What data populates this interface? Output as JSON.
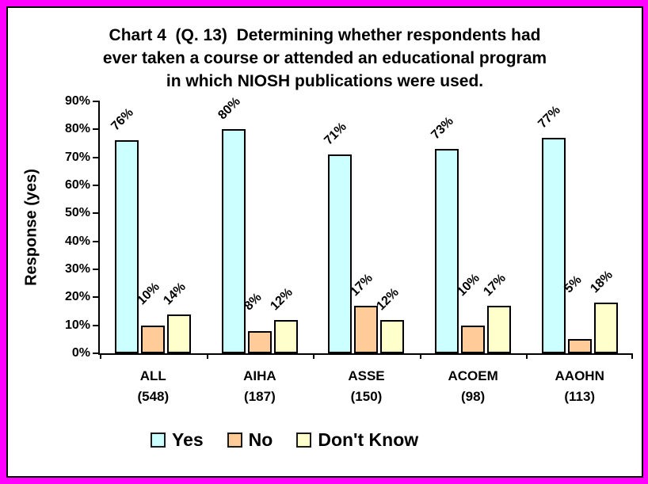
{
  "window": {
    "border_color": "#FF00FF",
    "background_color": "#FFFFFF"
  },
  "title": {
    "line1": "Chart 4  (Q. 13)  Determining whether respondents had",
    "line2": "ever taken a course or attended an educational program",
    "line3": "in which NIOSH publications were used."
  },
  "chart_data": {
    "type": "bar",
    "title": "Chart 4 (Q. 13) Determining whether respondents had ever taken a course or attended an educational program in which NIOSH publications were used.",
    "xlabel": "",
    "ylabel": "Response (yes)",
    "ylim": [
      0,
      90
    ],
    "ytick_step": 10,
    "ytick_labels": [
      "0%",
      "10%",
      "20%",
      "30%",
      "40%",
      "50%",
      "60%",
      "70%",
      "80%",
      "90%"
    ],
    "grid": false,
    "legend_position": "bottom",
    "data_label_rotation": -45,
    "categories": [
      "ALL",
      "AIHA",
      "ASSE",
      "ACOEM",
      "AAOHN"
    ],
    "category_counts": [
      "(548)",
      "(187)",
      "(150)",
      "(98)",
      "(113)"
    ],
    "series": [
      {
        "name": "Yes",
        "color": "#CCFFFF",
        "values": [
          76,
          80,
          71,
          73,
          77
        ]
      },
      {
        "name": "No",
        "color": "#FFCC99",
        "values": [
          10,
          8,
          17,
          10,
          5
        ]
      },
      {
        "name": "Don't Know",
        "color": "#FFFFCC",
        "values": [
          14,
          12,
          12,
          17,
          18
        ]
      }
    ]
  }
}
